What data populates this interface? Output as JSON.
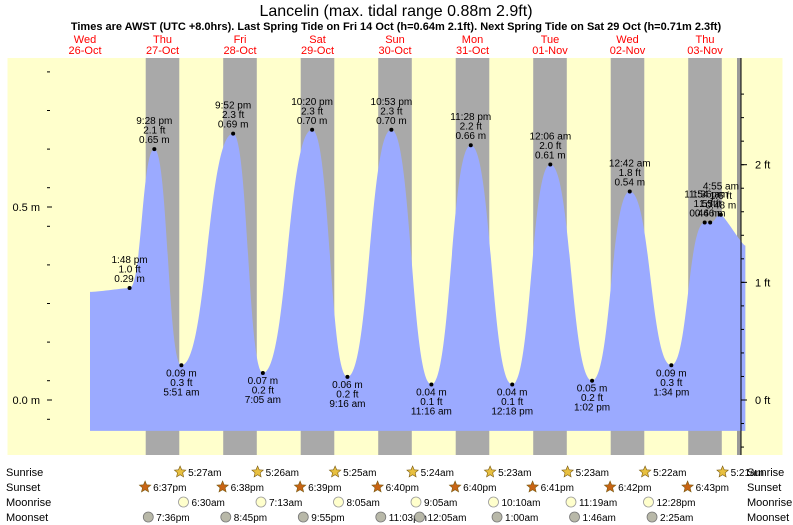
{
  "header": {
    "title": "Lancelin (max. tidal range 0.88m 2.9ft)",
    "subtitle": "Times are AWST (UTC +8.0hrs). Last Spring Tide on Fri 14 Oct (h=0.64m 2.1ft). Next Spring Tide on Sat 29 Oct (h=0.71m 2.3ft)"
  },
  "days": [
    {
      "name": "Wed",
      "date": "26-Oct"
    },
    {
      "name": "Thu",
      "date": "27-Oct"
    },
    {
      "name": "Fri",
      "date": "28-Oct"
    },
    {
      "name": "Sat",
      "date": "29-Oct"
    },
    {
      "name": "Sun",
      "date": "30-Oct"
    },
    {
      "name": "Mon",
      "date": "31-Oct"
    },
    {
      "name": "Tue",
      "date": "01-Nov"
    },
    {
      "name": "Wed",
      "date": "02-Nov"
    },
    {
      "name": "Thu",
      "date": "03-Nov"
    }
  ],
  "colors": {
    "day_bg": "#ffffcc",
    "night_bg": "#a9a9a9",
    "margin_bg": "#999999",
    "tide_fill": "#9baaff",
    "day_label": "#ff0000",
    "sun_icon": "#e8c040",
    "sunset_icon": "#c86414",
    "moonrise_icon": "#ffffcc",
    "moonset_icon": "#b8b8a8"
  },
  "chart_data": {
    "type": "area",
    "title": "Lancelin (max. tidal range 0.88m 2.9ft)",
    "y_left_ticks": [
      "0.0 m",
      "0.5 m"
    ],
    "y_right_ticks": [
      "0 ft",
      "1 ft",
      "2 ft"
    ],
    "ylim_m": [
      -0.08,
      0.88
    ],
    "tides": [
      {
        "day": 0,
        "time": "1:48 pm",
        "hours": 13.8,
        "m": 0.29,
        "m_label": "0.29 m",
        "ft_label": "1.0 ft"
      },
      {
        "day": 0,
        "time": "9:28 pm",
        "hours": 21.47,
        "m": 0.65,
        "m_label": "0.65 m",
        "ft_label": "2.1 ft"
      },
      {
        "day": 1,
        "time": "5:51 am",
        "hours": 5.85,
        "m": 0.09,
        "m_label": "0.09 m",
        "ft_label": "0.3 ft"
      },
      {
        "day": 1,
        "time": "9:52 pm",
        "hours": 21.87,
        "m": 0.69,
        "m_label": "0.69 m",
        "ft_label": "2.3 ft"
      },
      {
        "day": 2,
        "time": "7:05 am",
        "hours": 7.08,
        "m": 0.07,
        "m_label": "0.07 m",
        "ft_label": "0.2 ft"
      },
      {
        "day": 2,
        "time": "10:20 pm",
        "hours": 22.33,
        "m": 0.7,
        "m_label": "0.70 m",
        "ft_label": "2.3 ft"
      },
      {
        "day": 3,
        "time": "9:16 am",
        "hours": 9.27,
        "m": 0.06,
        "m_label": "0.06 m",
        "ft_label": "0.2 ft"
      },
      {
        "day": 3,
        "time": "10:53 pm",
        "hours": 22.88,
        "m": 0.7,
        "m_label": "0.70 m",
        "ft_label": "2.3 ft"
      },
      {
        "day": 4,
        "time": "11:16 am",
        "hours": 11.27,
        "m": 0.04,
        "m_label": "0.04 m",
        "ft_label": "0.1 ft"
      },
      {
        "day": 4,
        "time": "11:28 pm",
        "hours": 23.47,
        "m": 0.66,
        "m_label": "0.66 m",
        "ft_label": "2.2 ft"
      },
      {
        "day": 5,
        "time": "12:18 pm",
        "hours": 12.3,
        "m": 0.04,
        "m_label": "0.04 m",
        "ft_label": "0.1 ft"
      },
      {
        "day": 6,
        "time": "12:06 am",
        "hours": 0.1,
        "m": 0.61,
        "m_label": "0.61 m",
        "ft_label": "2.0 ft"
      },
      {
        "day": 6,
        "time": "1:02 pm",
        "hours": 13.03,
        "m": 0.05,
        "m_label": "0.05 m",
        "ft_label": "0.2 ft"
      },
      {
        "day": 7,
        "time": "12:42 am",
        "hours": 0.7,
        "m": 0.54,
        "m_label": "0.54 m",
        "ft_label": "1.8 ft"
      },
      {
        "day": 7,
        "time": "1:34 pm",
        "hours": 13.57,
        "m": 0.09,
        "m_label": "0.09 m",
        "ft_label": "0.3 ft"
      },
      {
        "day": 8,
        "time": "11:54 pm",
        "hours": -0.1,
        "m": 0.46,
        "m_label": "0.46 m",
        "ft_label": "1.5 ft"
      },
      {
        "day": 8,
        "time": "1:36 am",
        "hours": 1.6,
        "m": 0.46,
        "m_label": "0.46 m",
        "ft_label": "1.5 ft"
      },
      {
        "day": 8,
        "time": "4:55 am",
        "hours": 4.92,
        "m": 0.48,
        "m_label": "0.48 m",
        "ft_label": "1.6 ft"
      }
    ]
  },
  "rows": {
    "labels": [
      "Sunrise",
      "Sunset",
      "Moonrise",
      "Moonset"
    ],
    "sunrise": [
      "5:27am",
      "5:26am",
      "5:25am",
      "5:24am",
      "5:23am",
      "5:23am",
      "5:22am",
      "5:21am"
    ],
    "sunset": [
      "6:37pm",
      "6:38pm",
      "6:39pm",
      "6:40pm",
      "6:40pm",
      "6:41pm",
      "6:42pm",
      "6:43pm"
    ],
    "moonrise": [
      "6:30am",
      "7:13am",
      "8:05am",
      "9:05am",
      "10:10am",
      "11:19am",
      "12:28pm"
    ],
    "moonset": [
      "7:36pm",
      "8:45pm",
      "9:55pm",
      "11:03pm",
      "12:05am",
      "1:00am",
      "1:46am",
      "2:25am"
    ]
  }
}
